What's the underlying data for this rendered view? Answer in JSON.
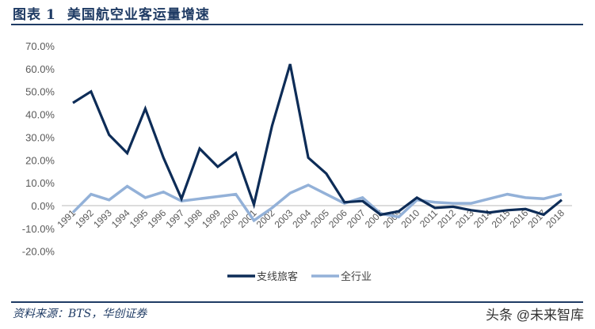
{
  "header": {
    "figure_label": "图表",
    "figure_number": "1",
    "title": "美国航空业客运量增速"
  },
  "footer": {
    "source": "资料来源：BTS，华创证券",
    "watermark": "头条 @未来智库"
  },
  "colors": {
    "regional": "#0d2c57",
    "industry": "#93b1d8",
    "zero_line": "#d0d0d0",
    "title": "#1f3b64"
  },
  "chart_data": {
    "type": "line",
    "title": "美国航空业客运量增速",
    "xlabel": "",
    "ylabel": "",
    "ylim": [
      -0.2,
      0.7
    ],
    "yticks": [
      "70.0%",
      "60.0%",
      "50.0%",
      "40.0%",
      "30.0%",
      "20.0%",
      "10.0%",
      "0.0%",
      "-10.0%",
      "-20.0%"
    ],
    "grid": false,
    "legend_position": "bottom",
    "x": [
      "1991",
      "1992",
      "1993",
      "1994",
      "1995",
      "1996",
      "1997",
      "1998",
      "1999",
      "2000",
      "2001",
      "2002",
      "2003",
      "2004",
      "2005",
      "2006",
      "2007",
      "2008",
      "2009",
      "2010",
      "2011",
      "2012",
      "2013",
      "2014",
      "2015",
      "2016",
      "2017",
      "2018"
    ],
    "series": [
      {
        "name": "支线旅客",
        "color": "#0d2c57",
        "values": [
          0.45,
          0.5,
          0.31,
          0.23,
          0.425,
          0.21,
          0.03,
          0.25,
          0.17,
          0.23,
          0.005,
          0.35,
          0.62,
          0.21,
          0.14,
          0.015,
          0.02,
          -0.04,
          -0.025,
          0.035,
          -0.01,
          -0.005,
          -0.02,
          -0.03,
          -0.02,
          -0.015,
          -0.04,
          0.025
        ]
      },
      {
        "name": "全行业",
        "color": "#93b1d8",
        "values": [
          -0.03,
          0.05,
          0.025,
          0.085,
          0.035,
          0.06,
          0.02,
          0.03,
          0.04,
          0.05,
          -0.065,
          -0.01,
          0.055,
          0.09,
          0.05,
          0.01,
          0.035,
          -0.035,
          -0.05,
          0.025,
          0.015,
          0.01,
          0.01,
          0.03,
          0.05,
          0.035,
          0.03,
          0.05
        ]
      }
    ]
  }
}
